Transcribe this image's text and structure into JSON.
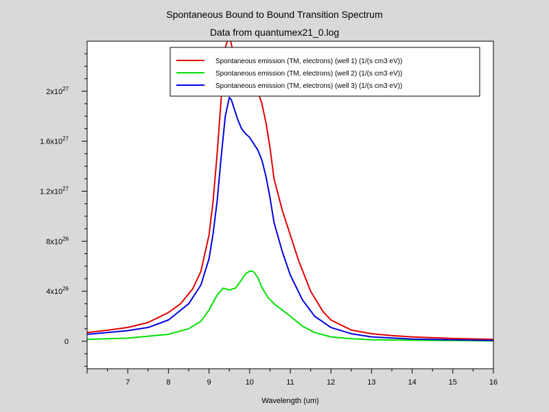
{
  "chart_data": {
    "type": "line",
    "title": "Spontaneous Bound to Bound Transition Spectrum",
    "subtitle": "Data from quantumex21_0.log",
    "xlabel": "Wavelength (um)",
    "ylabel": "",
    "xlim": [
      6.0,
      16.0
    ],
    "ylim": [
      -2.2e+26,
      2.4e+27
    ],
    "x_ticks": [
      7,
      8,
      9,
      10,
      11,
      12,
      13,
      14,
      15,
      16
    ],
    "y_ticks": [
      {
        "value": 0,
        "mantissa": "0",
        "exponent": ""
      },
      {
        "value": 4e+26,
        "mantissa": "4x10",
        "exponent": "26"
      },
      {
        "value": 8e+26,
        "mantissa": "8x10",
        "exponent": "26"
      },
      {
        "value": 1.2e+27,
        "mantissa": "1.2x10",
        "exponent": "27"
      },
      {
        "value": 1.6e+27,
        "mantissa": "1.6x10",
        "exponent": "27"
      },
      {
        "value": 2e+27,
        "mantissa": "2x10",
        "exponent": "27"
      }
    ],
    "grid": false,
    "legend_position": "top-right",
    "series": [
      {
        "name": "Spontaneous emission (TM, electrons) (well 1) (1/(s cm3 eV))",
        "color": "#e00000",
        "x": [
          6.0,
          6.5,
          7.0,
          7.5,
          8.0,
          8.3,
          8.6,
          8.8,
          9.0,
          9.1,
          9.2,
          9.3,
          9.4,
          9.5,
          9.6,
          9.7,
          9.8,
          9.9,
          10.0,
          10.1,
          10.2,
          10.3,
          10.4,
          10.5,
          10.6,
          10.8,
          11.0,
          11.2,
          11.5,
          11.8,
          12.0,
          12.5,
          13.0,
          13.5,
          14.0,
          15.0,
          16.0
        ],
        "y": [
          7e+25,
          8.8e+25,
          1.1e+26,
          1.5e+26,
          2.3e+26,
          3e+26,
          4.2e+26,
          5.6e+26,
          8.5e+26,
          1.12e+27,
          1.5e+27,
          1.95e+27,
          2.35e+27,
          2.45e+27,
          2.3e+27,
          2.15e+27,
          2.08e+27,
          2.06e+27,
          2.05e+27,
          2.04e+27,
          2e+27,
          1.9e+27,
          1.75e+27,
          1.55e+27,
          1.3e+27,
          1.05e+27,
          8.5e+26,
          6.5e+26,
          4e+26,
          2.4e+26,
          1.7e+26,
          9e+25,
          6e+25,
          4.5e+25,
          3.5e+25,
          2.2e+25,
          1.5e+25
        ]
      },
      {
        "name": "Spontaneous emission (TM, electrons) (well 2) (1/(s cm3 eV))",
        "color": "#00e000",
        "x": [
          6.0,
          7.0,
          8.0,
          8.5,
          8.8,
          9.0,
          9.2,
          9.35,
          9.5,
          9.65,
          9.8,
          9.9,
          10.0,
          10.05,
          10.1,
          10.2,
          10.3,
          10.45,
          10.6,
          10.8,
          11.0,
          11.3,
          11.6,
          12.0,
          12.5,
          13.0,
          14.0,
          15.0,
          16.0
        ],
        "y": [
          1.5e+25,
          2.5e+25,
          5.5e+25,
          1e+26,
          1.6e+26,
          2.5e+26,
          3.7e+26,
          4.25e+26,
          4.1e+26,
          4.25e+26,
          4.9e+26,
          5.4e+26,
          5.6e+26,
          5.62e+26,
          5.55e+26,
          5.1e+26,
          4.3e+26,
          3.5e+26,
          3e+26,
          2.5e+26,
          2e+26,
          1.2e+26,
          7e+25,
          3.5e+25,
          2e+25,
          1.2e+25,
          8e+24,
          5e+24,
          3e+24
        ]
      },
      {
        "name": "Spontaneous emission (TM, electrons) (well 3) (1/(s cm3 eV))",
        "color": "#0000e0",
        "x": [
          6.0,
          6.5,
          7.0,
          7.5,
          8.0,
          8.5,
          8.8,
          9.0,
          9.1,
          9.2,
          9.3,
          9.4,
          9.5,
          9.55,
          9.6,
          9.7,
          9.8,
          9.9,
          10.0,
          10.1,
          10.2,
          10.3,
          10.4,
          10.5,
          10.6,
          10.8,
          11.0,
          11.3,
          11.6,
          12.0,
          12.5,
          13.0,
          14.0,
          15.0,
          16.0
        ],
        "y": [
          5.5e+25,
          7e+25,
          8.5e+25,
          1.1e+26,
          1.7e+26,
          3e+26,
          4.5e+26,
          6.6e+26,
          8.6e+26,
          1.12e+27,
          1.48e+27,
          1.8e+27,
          1.95e+27,
          1.93e+27,
          1.88e+27,
          1.78e+27,
          1.7e+27,
          1.66e+27,
          1.63e+27,
          1.58e+27,
          1.53e+27,
          1.45e+27,
          1.32e+27,
          1.15e+27,
          9.5e+26,
          7.2e+26,
          5.3e+26,
          3.3e+26,
          2e+26,
          1.1e+26,
          6e+25,
          3.5e+25,
          1.8e+25,
          1.1e+25,
          7e+24
        ]
      }
    ]
  }
}
